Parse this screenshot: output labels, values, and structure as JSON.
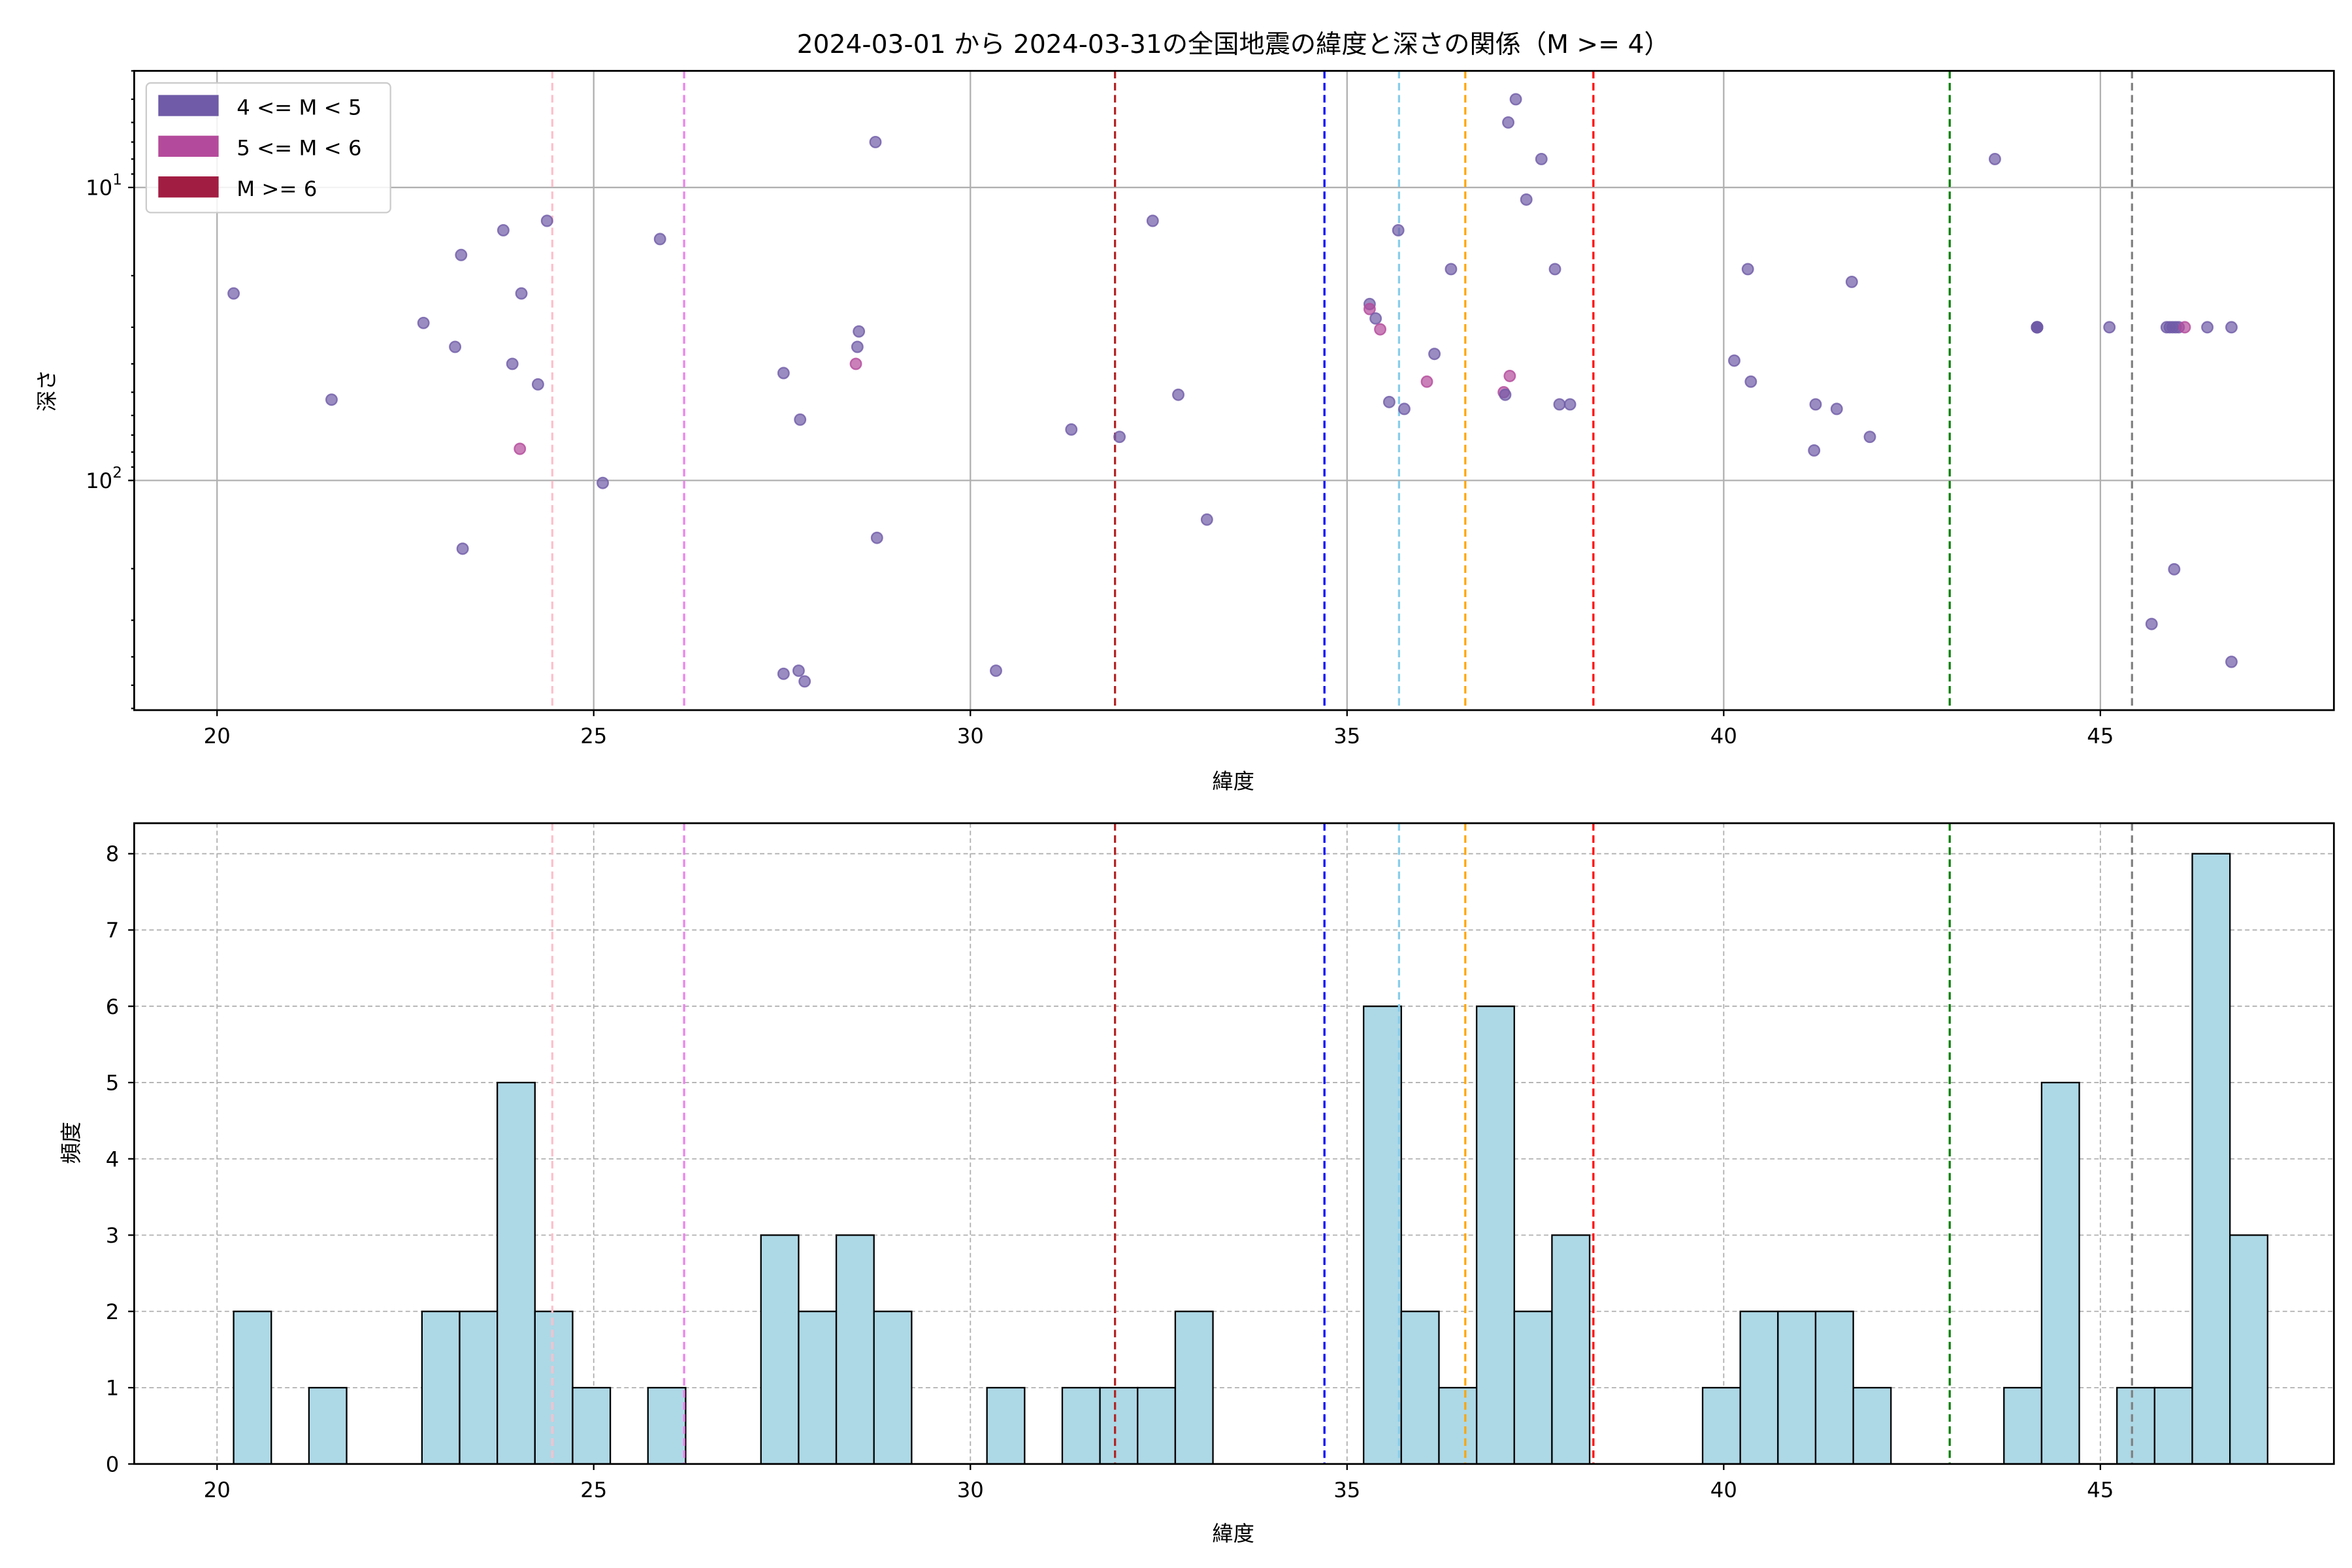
{
  "chart_data": [
    {
      "type": "scatter",
      "title": "2024-03-01 から 2024-03-31の全国地震の緯度と深さの関係（M >= 4）",
      "xlabel": "緯度",
      "ylabel": "深さ",
      "xlim": [
        18.9,
        48.1
      ],
      "ylim": [
        4,
        608
      ],
      "yscale": "log",
      "yinverted": true,
      "xticks": [
        20,
        25,
        30,
        35,
        40,
        45
      ],
      "yticks": [
        {
          "value": 10,
          "base": "10",
          "exp": "1"
        },
        {
          "value": 100,
          "base": "10",
          "exp": "2"
        }
      ],
      "grid": true,
      "legend_position": "top-left",
      "legend": [
        {
          "label": "4 <= M < 5",
          "color": "#6f5ba7"
        },
        {
          "label": "5 <= M < 6",
          "color": "#b44a9b"
        },
        {
          "label": "M >= 6",
          "color": "#a21d42"
        }
      ],
      "points": [
        [
          20.22,
          23,
          0
        ],
        [
          21.52,
          53,
          0
        ],
        [
          22.74,
          29,
          0
        ],
        [
          23.16,
          35,
          0
        ],
        [
          23.24,
          17,
          0
        ],
        [
          23.26,
          171,
          0
        ],
        [
          23.8,
          14,
          0
        ],
        [
          23.92,
          40,
          0
        ],
        [
          24.02,
          78,
          1
        ],
        [
          24.04,
          23,
          0
        ],
        [
          24.26,
          47,
          0
        ],
        [
          24.38,
          13,
          0
        ],
        [
          25.12,
          102,
          0
        ],
        [
          25.88,
          15,
          0
        ],
        [
          27.52,
          43,
          0
        ],
        [
          27.52,
          457,
          0
        ],
        [
          27.72,
          446,
          0
        ],
        [
          27.74,
          62,
          0
        ],
        [
          27.8,
          485,
          0
        ],
        [
          28.5,
          35,
          0
        ],
        [
          28.52,
          31,
          0
        ],
        [
          28.48,
          40,
          1
        ],
        [
          28.74,
          7,
          0
        ],
        [
          28.76,
          157,
          0
        ],
        [
          30.34,
          446,
          0
        ],
        [
          31.34,
          67,
          0
        ],
        [
          31.98,
          71,
          0
        ],
        [
          32.42,
          13,
          0
        ],
        [
          32.76,
          51,
          0
        ],
        [
          33.14,
          136,
          0
        ],
        [
          35.3,
          25,
          0
        ],
        [
          35.3,
          26,
          1
        ],
        [
          35.38,
          28,
          0
        ],
        [
          35.44,
          30.5,
          1
        ],
        [
          35.56,
          54,
          0
        ],
        [
          35.68,
          14,
          0
        ],
        [
          35.76,
          57,
          0
        ],
        [
          36.06,
          46,
          1
        ],
        [
          36.38,
          19,
          0
        ],
        [
          36.16,
          37,
          0
        ],
        [
          37.08,
          50,
          1
        ],
        [
          37.1,
          51,
          0
        ],
        [
          37.14,
          6,
          0
        ],
        [
          37.16,
          44,
          1
        ],
        [
          37.24,
          5,
          0
        ],
        [
          37.38,
          11,
          0
        ],
        [
          37.58,
          8,
          0
        ],
        [
          37.76,
          19,
          0
        ],
        [
          37.82,
          55,
          0
        ],
        [
          37.96,
          55,
          0
        ],
        [
          40.14,
          39,
          0
        ],
        [
          40.32,
          19,
          0
        ],
        [
          40.36,
          46,
          0
        ],
        [
          41.2,
          79,
          0
        ],
        [
          41.22,
          55,
          0
        ],
        [
          41.5,
          57,
          0
        ],
        [
          41.7,
          21,
          0
        ],
        [
          41.94,
          71,
          0
        ],
        [
          43.6,
          8,
          0
        ],
        [
          44.16,
          30,
          0
        ],
        [
          44.16,
          30,
          0
        ],
        [
          44.16,
          30,
          0
        ],
        [
          44.16,
          30,
          0
        ],
        [
          44.16,
          30,
          0
        ],
        [
          45.12,
          30,
          0
        ],
        [
          45.68,
          309,
          0
        ],
        [
          45.88,
          30,
          0
        ],
        [
          45.92,
          30,
          0
        ],
        [
          45.96,
          30,
          0
        ],
        [
          46.0,
          30,
          0
        ],
        [
          46.04,
          30,
          0
        ],
        [
          46.12,
          30,
          1
        ],
        [
          45.98,
          201,
          0
        ],
        [
          46.42,
          30,
          0
        ],
        [
          46.74,
          30,
          0
        ],
        [
          46.74,
          416,
          0
        ]
      ],
      "reference_lines": [
        {
          "lat": 24.45,
          "color": "#ffc0cb"
        },
        {
          "lat": 26.2,
          "color": "#ee82ee"
        },
        {
          "lat": 31.92,
          "color": "#b22222"
        },
        {
          "lat": 34.7,
          "color": "#0000ff"
        },
        {
          "lat": 35.69,
          "color": "#87ceeb"
        },
        {
          "lat": 36.57,
          "color": "#ffa500"
        },
        {
          "lat": 38.27,
          "color": "#ff0000"
        },
        {
          "lat": 43.0,
          "color": "#008000"
        },
        {
          "lat": 45.42,
          "color": "#808080"
        }
      ]
    },
    {
      "type": "bar",
      "subtype": "histogram",
      "xlabel": "緯度",
      "ylabel": "頻度",
      "xlim": [
        18.9,
        48.1
      ],
      "ylim": [
        0,
        8.4
      ],
      "xticks": [
        20,
        25,
        30,
        35,
        40,
        45
      ],
      "yticks": [
        0,
        1,
        2,
        3,
        4,
        5,
        6,
        7,
        8
      ],
      "grid": true,
      "bar_color": "#add8e6",
      "bin_start": 20.22,
      "bin_width": 0.5,
      "counts": [
        2,
        0,
        1,
        0,
        0,
        2,
        2,
        5,
        2,
        1,
        0,
        1,
        0,
        0,
        3,
        2,
        3,
        2,
        0,
        0,
        1,
        0,
        1,
        1,
        1,
        2,
        0,
        0,
        0,
        0,
        6,
        2,
        1,
        6,
        2,
        3,
        0,
        0,
        0,
        1,
        2,
        2,
        2,
        1,
        0,
        0,
        0,
        1,
        5,
        0,
        1,
        1,
        8,
        3
      ]
    }
  ]
}
